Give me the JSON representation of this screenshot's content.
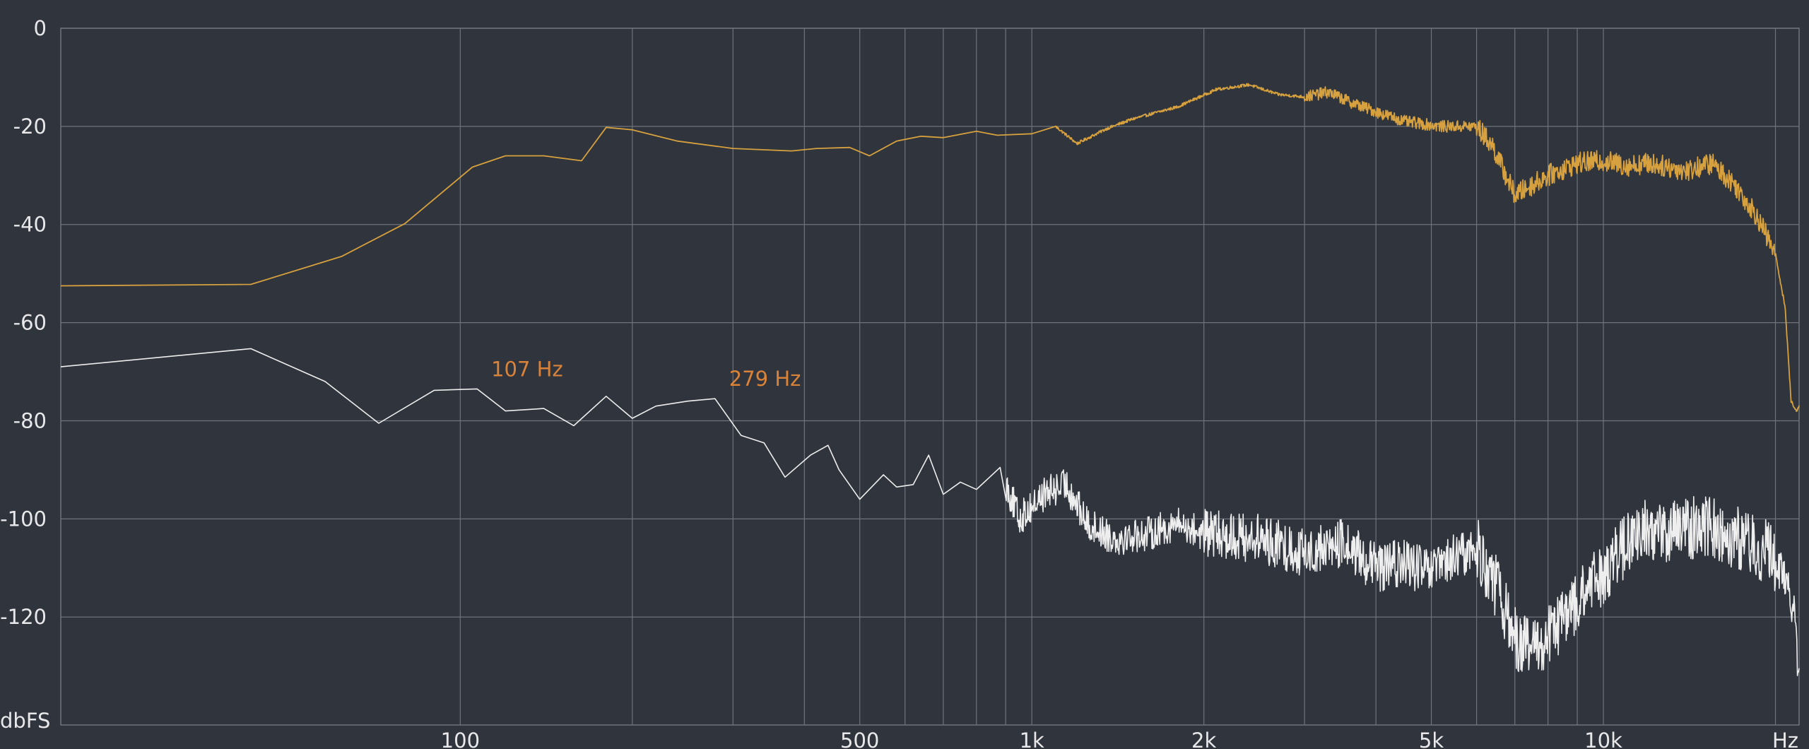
{
  "chart_data": {
    "type": "line",
    "x_scale": "log",
    "xlim": [
      20,
      22000
    ],
    "ylim": [
      -142,
      0
    ],
    "grid": true,
    "y_ticks": [
      {
        "value": 0,
        "label": "0"
      },
      {
        "value": -20,
        "label": "-20"
      },
      {
        "value": -40,
        "label": "-40"
      },
      {
        "value": -60,
        "label": "-60"
      },
      {
        "value": -80,
        "label": "-80"
      },
      {
        "value": -100,
        "label": "-100"
      },
      {
        "value": -120,
        "label": "-120"
      }
    ],
    "x_labeled_ticks": [
      {
        "value": 100,
        "label": "100"
      },
      {
        "value": 500,
        "label": "500"
      },
      {
        "value": 1000,
        "label": "1k"
      },
      {
        "value": 2000,
        "label": "2k"
      },
      {
        "value": 5000,
        "label": "5k"
      },
      {
        "value": 10000,
        "label": "10k"
      }
    ],
    "x_grid_values": [
      100,
      200,
      300,
      400,
      500,
      600,
      700,
      800,
      900,
      1000,
      2000,
      3000,
      4000,
      5000,
      6000,
      7000,
      8000,
      9000,
      10000,
      20000
    ],
    "y_unit_label": "dbFS",
    "x_unit_label": "Hz",
    "annotations": [
      {
        "text": "107 Hz",
        "x": 107,
        "y": -73.5
      },
      {
        "text": "279 Hz",
        "x": 279,
        "y": -75.5
      }
    ],
    "series": [
      {
        "color": "#d6a13e",
        "points": [
          [
            20,
            -52.5
          ],
          [
            43,
            -52.2
          ],
          [
            62,
            -46.5
          ],
          [
            80,
            -39.8
          ],
          [
            105,
            -28.3
          ],
          [
            120,
            -26
          ],
          [
            140,
            -26
          ],
          [
            163,
            -27
          ],
          [
            180,
            -20.2
          ],
          [
            200,
            -20.7
          ],
          [
            240,
            -23
          ],
          [
            300,
            -24.5
          ],
          [
            380,
            -25
          ],
          [
            420,
            -24.5
          ],
          [
            480,
            -24.3
          ],
          [
            520,
            -26
          ],
          [
            580,
            -23
          ],
          [
            640,
            -22
          ],
          [
            700,
            -22.3
          ],
          [
            800,
            -21
          ],
          [
            870,
            -21.8
          ],
          [
            1000,
            -21.5
          ],
          [
            1100,
            -20
          ],
          [
            1200,
            -23.5
          ],
          [
            1350,
            -20.5
          ],
          [
            1500,
            -18.5
          ],
          [
            1800,
            -16
          ],
          [
            2100,
            -12.5
          ],
          [
            2400,
            -11.5
          ],
          [
            2700,
            -13.5
          ],
          [
            3000,
            -14
          ],
          [
            3300,
            -13
          ],
          [
            3600,
            -15
          ],
          [
            4000,
            -17
          ],
          [
            4500,
            -19
          ],
          [
            5200,
            -20
          ],
          [
            6000,
            -20
          ],
          [
            6400,
            -24
          ],
          [
            7000,
            -34
          ],
          [
            8000,
            -30
          ],
          [
            9000,
            -27.5
          ],
          [
            10000,
            -27
          ],
          [
            11000,
            -28
          ],
          [
            12000,
            -27.5
          ],
          [
            14000,
            -29
          ],
          [
            15500,
            -27.5
          ],
          [
            17000,
            -32
          ],
          [
            18500,
            -38
          ],
          [
            20000,
            -46
          ],
          [
            20800,
            -57
          ],
          [
            21300,
            -76
          ],
          [
            21700,
            -78
          ],
          [
            22000,
            -77
          ]
        ]
      },
      {
        "color": "#eeeeee",
        "points": [
          [
            20,
            -69
          ],
          [
            43,
            -65.3
          ],
          [
            58,
            -72
          ],
          [
            72,
            -80.5
          ],
          [
            90,
            -73.8
          ],
          [
            107,
            -73.5
          ],
          [
            120,
            -78
          ],
          [
            140,
            -77.5
          ],
          [
            158,
            -81
          ],
          [
            180,
            -75
          ],
          [
            200,
            -79.5
          ],
          [
            220,
            -77
          ],
          [
            250,
            -76
          ],
          [
            279,
            -75.5
          ],
          [
            310,
            -83
          ],
          [
            340,
            -84.5
          ],
          [
            370,
            -91.5
          ],
          [
            410,
            -87
          ],
          [
            440,
            -85
          ],
          [
            460,
            -90
          ],
          [
            500,
            -96
          ],
          [
            550,
            -91
          ],
          [
            580,
            -93.5
          ],
          [
            620,
            -93
          ],
          [
            660,
            -87
          ],
          [
            700,
            -95
          ],
          [
            750,
            -92.5
          ],
          [
            800,
            -94
          ],
          [
            880,
            -89.5
          ],
          [
            950,
            -100
          ],
          [
            1050,
            -95
          ],
          [
            1150,
            -93
          ],
          [
            1250,
            -101
          ],
          [
            1400,
            -104
          ],
          [
            1600,
            -103
          ],
          [
            1800,
            -101
          ],
          [
            2000,
            -103
          ],
          [
            2500,
            -104
          ],
          [
            3000,
            -107
          ],
          [
            3500,
            -105
          ],
          [
            4000,
            -110
          ],
          [
            4500,
            -109
          ],
          [
            5000,
            -111
          ],
          [
            5500,
            -108
          ],
          [
            6000,
            -106
          ],
          [
            6500,
            -114
          ],
          [
            7000,
            -124
          ],
          [
            7500,
            -127
          ],
          [
            8000,
            -124
          ],
          [
            9000,
            -117
          ],
          [
            10000,
            -111
          ],
          [
            11000,
            -105
          ],
          [
            12000,
            -102
          ],
          [
            13000,
            -103
          ],
          [
            15000,
            -101
          ],
          [
            16500,
            -103
          ],
          [
            18000,
            -105
          ],
          [
            19500,
            -107
          ],
          [
            21000,
            -113
          ],
          [
            21600,
            -120
          ],
          [
            22000,
            -133
          ]
        ]
      }
    ]
  },
  "colors": {
    "background": "#30343c",
    "grid": "#6e737c",
    "annotation": "#d9833a"
  }
}
